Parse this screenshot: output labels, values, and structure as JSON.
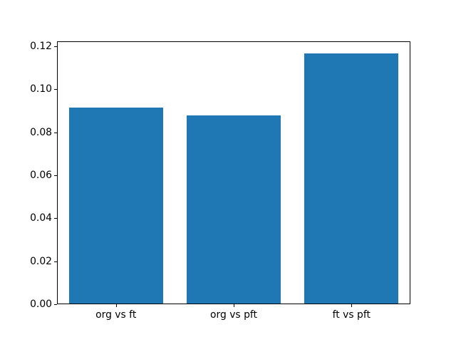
{
  "chart_data": {
    "type": "bar",
    "title": "",
    "xlabel": "",
    "ylabel": "",
    "categories": [
      "org vs ft",
      "org vs pft",
      "ft vs pft"
    ],
    "values": [
      0.0916,
      0.088,
      0.1166
    ],
    "ylim": [
      0,
      0.1224
    ],
    "yticks": [
      0.0,
      0.02,
      0.04,
      0.06,
      0.08,
      0.1,
      0.12
    ],
    "ytick_labels": [
      "0.00",
      "0.02",
      "0.04",
      "0.06",
      "0.08",
      "0.10",
      "0.12"
    ],
    "bar_color": "#1f77b4",
    "bar_width_fraction": 0.8,
    "background_color": "#ffffff",
    "spine_color": "#000000",
    "text_color": "#000000",
    "grid": false,
    "legend": false
  }
}
